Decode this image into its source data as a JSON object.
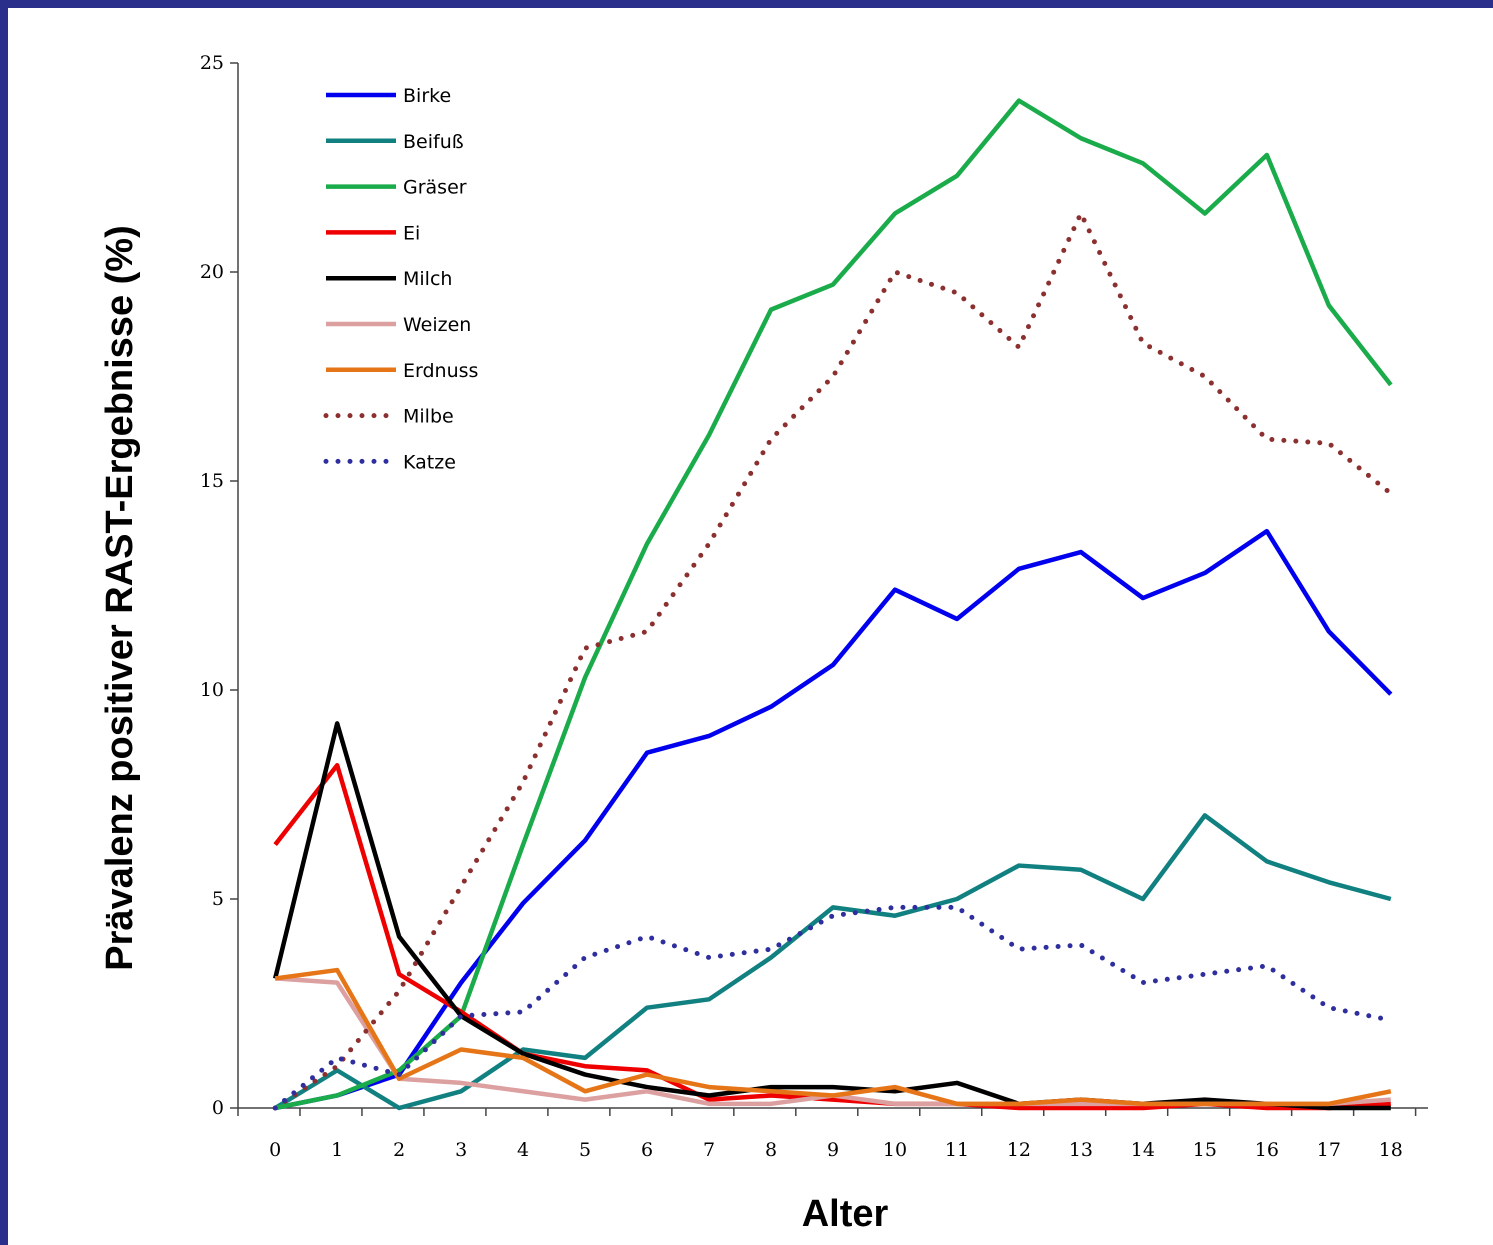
{
  "chart_data": {
    "type": "line",
    "title": "",
    "xlabel": "Alter",
    "ylabel": "Prävalenz positiver RAST-Ergebnisse (%)",
    "x": [
      0,
      1,
      2,
      3,
      4,
      5,
      6,
      7,
      8,
      9,
      10,
      11,
      12,
      13,
      14,
      15,
      16,
      17,
      18
    ],
    "x_tick_labels": [
      "0",
      "1",
      "2",
      "3",
      "4",
      "5",
      "6",
      "7",
      "8",
      "9",
      "10",
      "11",
      "12",
      "13",
      "14",
      "15",
      "16",
      "17",
      "18"
    ],
    "xlim": [
      -0.6,
      18.6
    ],
    "ylim": [
      0,
      25
    ],
    "y_ticks": [
      0,
      5,
      10,
      15,
      20,
      25
    ],
    "y_tick_labels": [
      "0",
      "5",
      "10",
      "15",
      "20",
      "25"
    ],
    "grid": false,
    "legend_position": "top-left",
    "series": [
      {
        "name": "Birke",
        "color": "#0000ee",
        "style": "solid",
        "values": [
          0,
          0.3,
          0.8,
          3.0,
          4.9,
          6.4,
          8.5,
          8.9,
          9.6,
          10.6,
          12.4,
          11.7,
          12.9,
          13.3,
          12.2,
          12.8,
          13.8,
          11.4,
          9.9
        ]
      },
      {
        "name": "Beifuß",
        "color": "#118080",
        "style": "solid",
        "values": [
          0,
          0.9,
          0,
          0.4,
          1.4,
          1.2,
          2.4,
          2.6,
          3.6,
          4.8,
          4.6,
          5.0,
          5.8,
          5.7,
          5.0,
          7.0,
          5.9,
          5.4,
          5.0
        ]
      },
      {
        "name": "Gräser",
        "color": "#1aab4a",
        "style": "solid",
        "values": [
          0,
          0.3,
          0.9,
          2.2,
          6.3,
          10.3,
          13.5,
          16.1,
          19.1,
          19.7,
          21.4,
          22.3,
          24.1,
          23.2,
          22.6,
          21.4,
          22.8,
          19.2,
          17.3
        ]
      },
      {
        "name": "Ei",
        "color": "#ee0000",
        "style": "solid",
        "values": [
          6.3,
          8.2,
          3.2,
          2.3,
          1.3,
          1.0,
          0.9,
          0.2,
          0.3,
          0.2,
          0.1,
          0.1,
          0,
          0,
          0,
          0.1,
          0,
          0,
          0.1
        ]
      },
      {
        "name": "Milch",
        "color": "#000000",
        "style": "solid",
        "values": [
          3.1,
          9.2,
          4.1,
          2.2,
          1.3,
          0.8,
          0.5,
          0.3,
          0.5,
          0.5,
          0.4,
          0.6,
          0.1,
          0.2,
          0.1,
          0.2,
          0.1,
          0,
          0
        ]
      },
      {
        "name": "Weizen",
        "color": "#dca0a0",
        "style": "solid",
        "values": [
          3.1,
          3.0,
          0.7,
          0.6,
          0.4,
          0.2,
          0.4,
          0.1,
          0.1,
          0.3,
          0.1,
          0.1,
          0.1,
          0.1,
          0.1,
          0.1,
          0.1,
          0.1,
          0.2
        ]
      },
      {
        "name": "Erdnuss",
        "color": "#e57517",
        "style": "solid",
        "values": [
          3.1,
          3.3,
          0.7,
          1.4,
          1.2,
          0.4,
          0.8,
          0.5,
          0.4,
          0.3,
          0.5,
          0.1,
          0.1,
          0.2,
          0.1,
          0.1,
          0.1,
          0.1,
          0.4
        ]
      },
      {
        "name": "Milbe",
        "color": "#8b2f2f",
        "style": "dotted",
        "values": [
          0,
          1.0,
          2.8,
          5.3,
          7.8,
          11.0,
          11.4,
          13.5,
          16.0,
          17.5,
          20.0,
          19.5,
          18.2,
          21.4,
          18.3,
          17.5,
          16.0,
          15.9,
          14.7
        ]
      },
      {
        "name": "Katze",
        "color": "#2e2e9e",
        "style": "dotted",
        "values": [
          0,
          1.2,
          0.8,
          2.2,
          2.3,
          3.6,
          4.1,
          3.6,
          3.8,
          4.6,
          4.8,
          4.8,
          3.8,
          3.9,
          3.0,
          3.2,
          3.4,
          2.4,
          2.1
        ]
      }
    ]
  }
}
